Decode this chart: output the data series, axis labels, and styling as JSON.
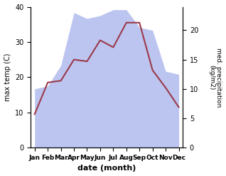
{
  "months": [
    "Jan",
    "Feb",
    "Mar",
    "Apr",
    "May",
    "Jun",
    "Jul",
    "Aug",
    "Sep",
    "Oct",
    "Nov",
    "Dec"
  ],
  "month_indices": [
    0,
    1,
    2,
    3,
    4,
    5,
    6,
    7,
    8,
    9,
    10,
    11
  ],
  "max_temp": [
    9.5,
    18.5,
    19.0,
    25.0,
    24.5,
    30.5,
    28.5,
    35.5,
    35.5,
    22.0,
    17.0,
    11.5
  ],
  "precipitation": [
    10.0,
    10.5,
    14.0,
    23.0,
    22.0,
    22.5,
    23.5,
    23.5,
    20.5,
    20.0,
    13.0,
    12.5
  ],
  "temp_color": "#9b3a4a",
  "precip_fill_color": "#bcc5f0",
  "left_ylim": [
    0,
    40
  ],
  "right_ylim": [
    0,
    24
  ],
  "right_yticks": [
    0,
    5,
    10,
    15,
    20
  ],
  "left_yticks": [
    0,
    10,
    20,
    30,
    40
  ],
  "xlabel": "date (month)",
  "ylabel_left": "max temp (C)",
  "ylabel_right": "med. precipitation\n(kg/m2)",
  "background_color": "#ffffff",
  "fig_width": 3.18,
  "fig_height": 2.47,
  "dpi": 100
}
